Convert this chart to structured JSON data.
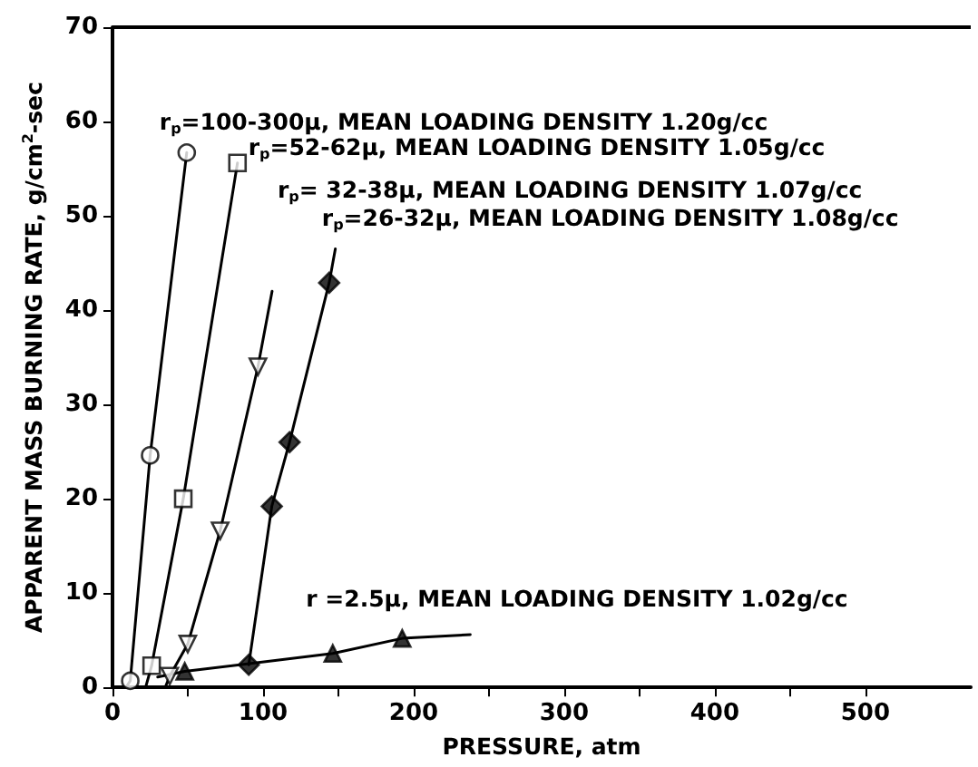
{
  "chart_data": {
    "type": "scatter",
    "xlabel": "PRESSURE, atm",
    "ylabel": "APPARENT MASS BURNING RATE, g/cm$^{2}$-sec",
    "xlim": [
      0,
      570
    ],
    "ylim": [
      0,
      70
    ],
    "xticks": [
      0,
      {
        "value": 50,
        "label": null
      },
      100,
      {
        "value": 150,
        "label": null
      },
      200,
      {
        "value": 250,
        "label": null
      },
      300,
      {
        "value": 350,
        "label": null
      },
      400,
      {
        "value": 450,
        "label": null
      },
      500
    ],
    "yticks": [
      0,
      10,
      20,
      30,
      40,
      50,
      60,
      70
    ],
    "grid": false,
    "series": [
      {
        "marker": "circle",
        "color": "#000000",
        "x": [
          11.8,
          25,
          49.3
        ],
        "values": [
          0.7,
          24.6,
          56.7
        ]
      },
      {
        "marker": "square",
        "color": "#000000",
        "x": [
          26,
          47,
          83
        ],
        "values": [
          2.3,
          20,
          55.6
        ]
      },
      {
        "marker": "triangle-down",
        "color": "#000000",
        "x": [
          38,
          50,
          71.5,
          96.6
        ],
        "values": [
          1.2,
          4.6,
          16.6,
          34
        ]
      },
      {
        "marker": "diamond",
        "color": "#000000",
        "x": [
          90.5,
          105.8,
          117.6,
          143.9
        ],
        "values": [
          2.4,
          19.2,
          26,
          42.9
        ]
      },
      {
        "marker": "triangle",
        "color": "#000000",
        "x": [
          48,
          146.3,
          192.4
        ],
        "values": [
          1.7,
          3.6,
          5.2
        ]
      },
      {
        "type": "line",
        "marker": "none",
        "color": "#000000",
        "x": [
          9,
          11.8,
          25,
          49.3
        ],
        "values": [
          0,
          0.7,
          24.6,
          56.7
        ]
      },
      {
        "type": "line",
        "marker": "none",
        "color": "#000000",
        "x": [
          22,
          26,
          47,
          83
        ],
        "values": [
          0,
          2.3,
          20,
          55.6
        ]
      },
      {
        "type": "line",
        "marker": "none",
        "color": "#000000",
        "x": [
          35,
          38,
          50,
          71.5,
          96.6,
          106
        ],
        "values": [
          0,
          1.2,
          4.6,
          16.6,
          34,
          42
        ]
      },
      {
        "type": "line",
        "marker": "none",
        "color": "#000000",
        "x": [
          90.5,
          105.8,
          117.6,
          143.9,
          148
        ],
        "values": [
          2.4,
          19.2,
          26,
          42.9,
          46.5
        ]
      },
      {
        "type": "line",
        "marker": "none",
        "color": "#000000",
        "x": [
          30,
          48,
          146.3,
          192.4,
          237.6
        ],
        "values": [
          1.1,
          1.7,
          3.6,
          5.2,
          5.6
        ]
      }
    ],
    "annotations": [
      {
        "text": "r$_{p}$=100-300μ, MEAN LOADING DENSITY 1.20g/cc",
        "x": 49.3,
        "y": 56.7
      },
      {
        "text": "r$_{p}$=52-62μ, MEAN LOADING DENSITY 1.05g/cc",
        "x": 83,
        "y": 55.6
      },
      "r$_{p}$= 32-38μ, MEAN LOADING DENSITY 1.07g/cc",
      {
        "text": "r$_{p}$=26-32μ, MEAN LOADING DENSITY 1.08g/cc",
        "x": 143.9,
        "y": 42.9
      },
      {
        "text": "r =2.5μ, MEAN LOADING DENSITY 1.02g/cc",
        "x": 192.4,
        "y": 5.2
      }
    ]
  }
}
